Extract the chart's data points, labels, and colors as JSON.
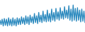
{
  "values": [
    55,
    42,
    58,
    38,
    60,
    40,
    58,
    38,
    62,
    40,
    58,
    38,
    62,
    40,
    58,
    38,
    62,
    42,
    60,
    42,
    65,
    45,
    62,
    42,
    68,
    45,
    65,
    42,
    70,
    48,
    65,
    45,
    75,
    48,
    68,
    45,
    78,
    50,
    70,
    48,
    82,
    52,
    72,
    50,
    85,
    52,
    75,
    50,
    88,
    55,
    78,
    52,
    90,
    58,
    80,
    55,
    92,
    60,
    82,
    58,
    95,
    62,
    85,
    60,
    98,
    55,
    88,
    52,
    100,
    55,
    90,
    52,
    92,
    55,
    85,
    50,
    88,
    52,
    82,
    48
  ],
  "line_color": "#2e8bbf",
  "background_color": "#ffffff",
  "ylim_min": 20,
  "ylim_max": 115,
  "line_width": 1.0
}
